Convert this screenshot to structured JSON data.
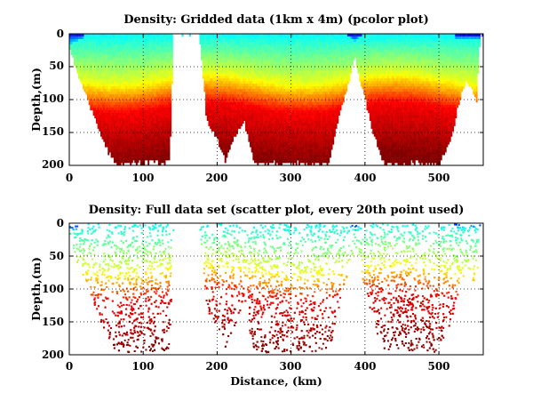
{
  "chart_data": [
    {
      "type": "heatmap",
      "title": "Density: Gridded data (1km x 4m) (pcolor plot)",
      "xlabel": "",
      "ylabel": "Depth,(m)",
      "xlim": [
        0,
        560
      ],
      "ylim": [
        0,
        200
      ],
      "y_reversed": true,
      "grid": true,
      "xticks": [
        "0",
        "100",
        "200",
        "300",
        "400",
        "500"
      ],
      "yticks": [
        "0",
        "50",
        "100",
        "150",
        "200"
      ],
      "colormap": "jet",
      "bottom_depth_profile": {
        "x": [
          0,
          10,
          25,
          40,
          60,
          90,
          120,
          135,
          140,
          175,
          185,
          200,
          210,
          220,
          235,
          250,
          260,
          280,
          300,
          320,
          340,
          350,
          365,
          380,
          385,
          390,
          400,
          410,
          425,
          440,
          460,
          480,
          500,
          515,
          525,
          535,
          545,
          550,
          555
        ],
        "depth": [
          20,
          60,
          100,
          150,
          195,
          195,
          195,
          195,
          0,
          0,
          130,
          160,
          190,
          160,
          130,
          195,
          195,
          195,
          195,
          195,
          195,
          195,
          120,
          60,
          30,
          60,
          100,
          150,
          195,
          195,
          195,
          195,
          195,
          160,
          110,
          70,
          85,
          100,
          0
        ]
      },
      "data_gaps_x": [
        [
          140,
          147
        ],
        [
          153,
          160
        ],
        [
          163,
          175
        ]
      ]
    },
    {
      "type": "scatter",
      "title": "Density: Full data set (scatter plot, every 20th point used)",
      "xlabel": "Distance, (km)",
      "ylabel": "Depth,(m)",
      "xlim": [
        0,
        560
      ],
      "ylim": [
        0,
        200
      ],
      "y_reversed": true,
      "grid": true,
      "xticks": [
        "0",
        "100",
        "200",
        "300",
        "400",
        "500"
      ],
      "yticks": [
        "0",
        "50",
        "100",
        "150",
        "200"
      ],
      "colormap": "jet"
    }
  ]
}
